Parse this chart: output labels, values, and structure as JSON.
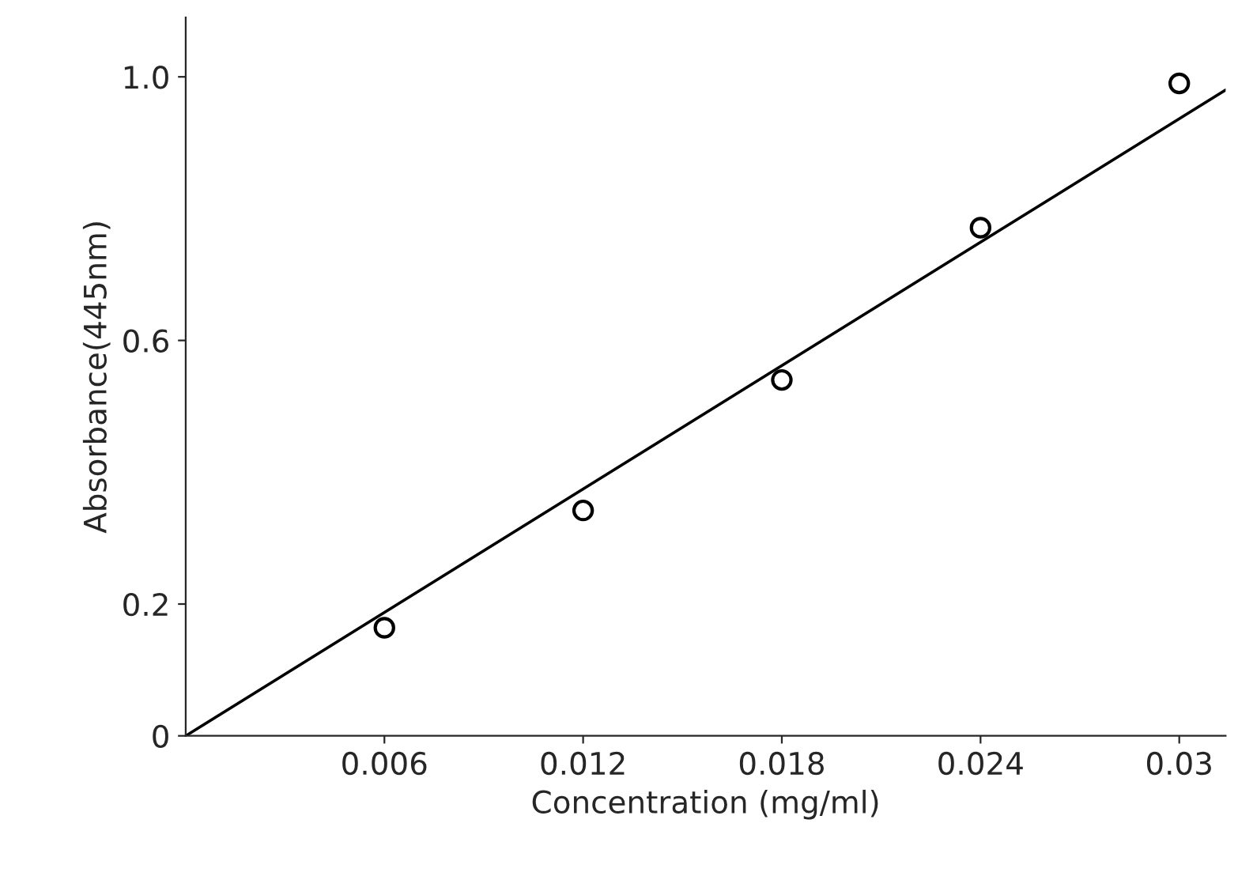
{
  "chart_data": {
    "type": "scatter",
    "xlabel": "Concentration (mg/ml)",
    "ylabel": "Absorbance(445nm)",
    "xlim": [
      0,
      0.0314
    ],
    "ylim": [
      0,
      1.09
    ],
    "xticks": [
      0.006,
      0.012,
      0.018,
      0.024,
      {
        "value": 0.03,
        "label": "0.03"
      }
    ],
    "yticks": [
      0,
      0.2,
      0.6,
      {
        "value": 1.0,
        "label": "1.0"
      }
    ],
    "series": [
      {
        "color": "#000000",
        "marker": "circle",
        "x": [
          0.006,
          0.012,
          0.018,
          0.024,
          0.03
        ],
        "values": [
          0.164,
          0.342,
          0.54,
          0.771,
          0.99
        ]
      },
      {
        "type": "line",
        "color": "#000000",
        "line_style": "solid",
        "x": [
          0,
          0.0314
        ],
        "values": [
          0,
          0.98
        ]
      }
    ]
  }
}
